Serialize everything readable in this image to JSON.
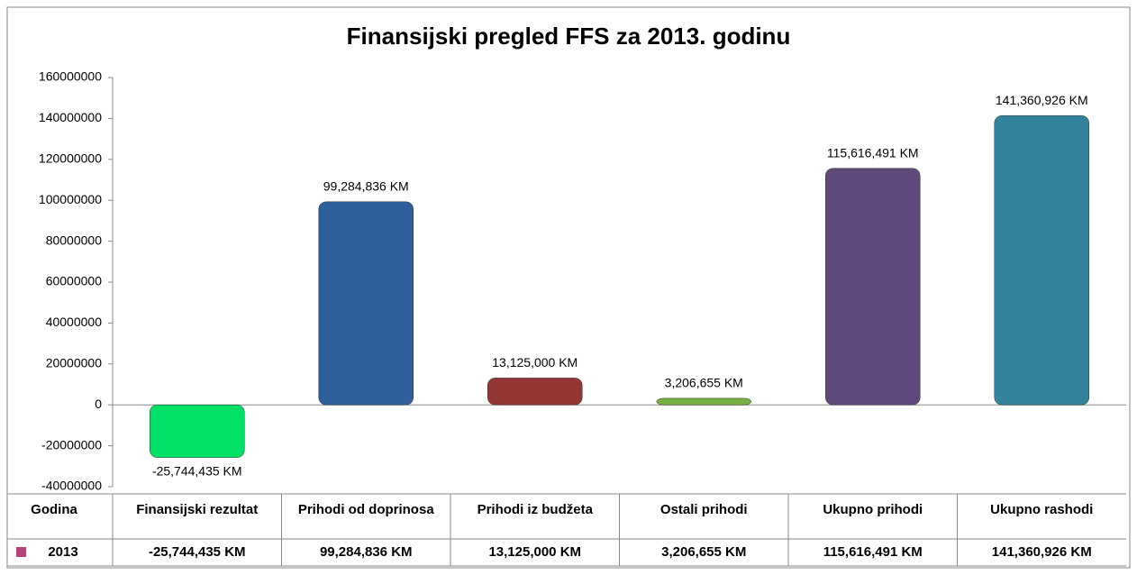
{
  "chart_data": {
    "type": "bar",
    "title": "Finansijski pregled FFS za 2013. godinu",
    "categories": [
      "Finansijski rezultat",
      "Prihodi od doprinosa",
      "Prihodi iz budžeta",
      "Ostali prihodi",
      "Ukupno prihodi",
      "Ukupno rashodi"
    ],
    "table_header": "Godina",
    "series": [
      {
        "name": "2013",
        "color": "#b4457a",
        "values": [
          -25744435,
          99284836,
          13125000,
          3206655,
          115616491,
          141360926
        ],
        "value_labels": [
          "-25,744,435 KM",
          "99,284,836 KM",
          "13,125,000 KM",
          "3,206,655 KM",
          "115,616,491 KM",
          "141,360,926 KM"
        ]
      }
    ],
    "colors": [
      "#00e066",
      "#2e5f9a",
      "#943634",
      "#76b041",
      "#5f497a",
      "#31849b"
    ],
    "ylim": [
      -40000000,
      160000000
    ],
    "yticks": [
      -40000000,
      -20000000,
      0,
      20000000,
      40000000,
      60000000,
      80000000,
      100000000,
      120000000,
      140000000,
      160000000
    ]
  }
}
